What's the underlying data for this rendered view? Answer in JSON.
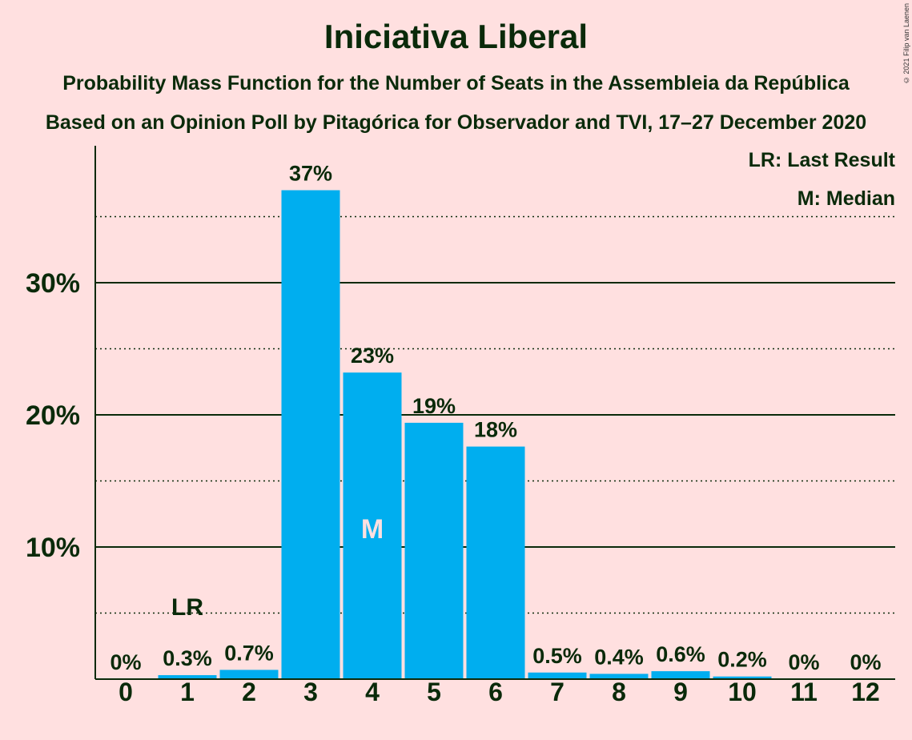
{
  "chart_data": {
    "type": "bar",
    "title": "Iniciativa Liberal",
    "subtitle": "Probability Mass Function for the Number of Seats in the Assembleia da República",
    "subtitle2": "Based on an Opinion Poll by Pitagórica for Observador and TVI, 17–27 December 2020",
    "copyright": "© 2021 Filip van Laenen",
    "legend": [
      "LR: Last Result",
      "M: Median"
    ],
    "legend_position": "top-right",
    "xlabel": "",
    "ylabel": "",
    "categories": [
      "0",
      "1",
      "2",
      "3",
      "4",
      "5",
      "6",
      "7",
      "8",
      "9",
      "10",
      "11",
      "12"
    ],
    "values": [
      0,
      0.3,
      0.7,
      37,
      23.2,
      19.4,
      17.6,
      0.5,
      0.4,
      0.6,
      0.2,
      0,
      0
    ],
    "value_labels": [
      "0%",
      "0.3%",
      "0.7%",
      "37%",
      "23%",
      "19%",
      "18%",
      "0.5%",
      "0.4%",
      "0.6%",
      "0.2%",
      "0%",
      "0%"
    ],
    "yticks": [
      10,
      20,
      30
    ],
    "ytick_labels": [
      "10%",
      "20%",
      "30%"
    ],
    "minor_gridlines": [
      5,
      15,
      25,
      35
    ],
    "ylim": [
      0,
      40
    ],
    "last_result_seat": "1",
    "last_result_label": "LR",
    "median_seat": "4",
    "median_label": "M",
    "colors": {
      "background": "#FFE0E0",
      "bar": "#00AEEF",
      "text": "#0A2A0A"
    }
  }
}
